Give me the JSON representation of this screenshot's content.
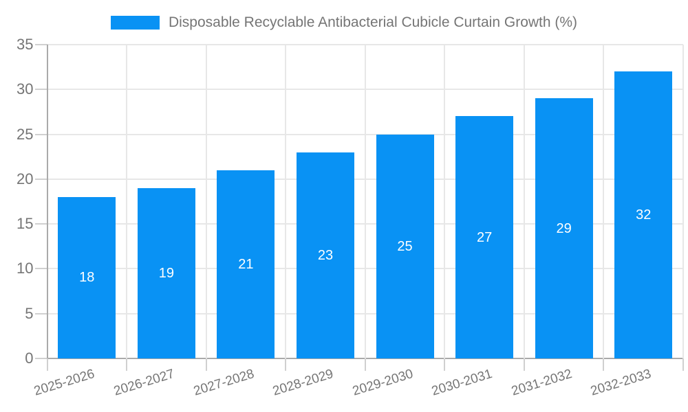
{
  "chart_data": {
    "type": "bar",
    "title": "Disposable Recyclable Antibacterial Cubicle Curtain Growth (%)",
    "categories": [
      "2025-2026",
      "2026-2027",
      "2027-2028",
      "2028-2029",
      "2029-2030",
      "2030-2031",
      "2031-2032",
      "2032-2033"
    ],
    "values": [
      18,
      19,
      21,
      23,
      25,
      27,
      29,
      32
    ],
    "value_labels": [
      "18",
      "19",
      "21",
      "23",
      "25",
      "27",
      "29",
      "32"
    ],
    "xlabel": "",
    "ylabel": "",
    "ylim": [
      0,
      35
    ],
    "yticks": [
      0,
      5,
      10,
      15,
      20,
      25,
      30,
      35
    ],
    "grid": "on",
    "legend_position": "top-center",
    "colors": {
      "bar": "#0992f4",
      "axis_text": "#757575",
      "legend_text": "#757575",
      "gridline": "#e7e7e7",
      "axis_line": "#aaaaaa",
      "tick_mark": "#d0d0d0",
      "value_label": "#ffffff",
      "background": "#ffffff"
    }
  }
}
